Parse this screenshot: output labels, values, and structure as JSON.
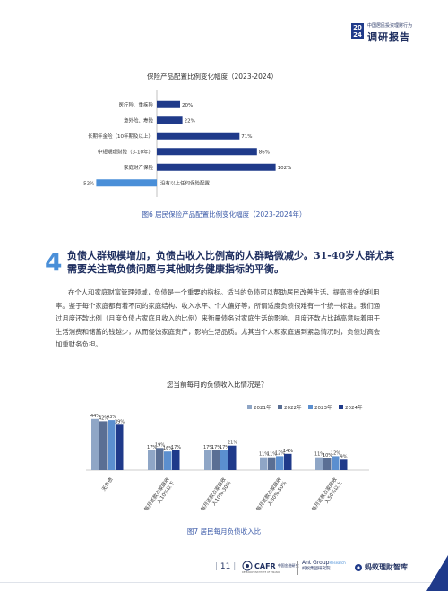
{
  "header": {
    "year_top": "20",
    "year_bottom": "24",
    "subtitle": "中国居民投资理财行为",
    "title": "调研报告"
  },
  "chart1": {
    "title": "保险产品配置比例变化幅度（2023-2024）",
    "caption": "图6 居民保险产品配置比例变化幅度（2023-2024年）",
    "bar_color": "#1f3a8a",
    "negative_color": "#4a8fd8",
    "chart_data": {
      "type": "bar",
      "orientation": "horizontal",
      "categories": [
        "医疗险、重疾险",
        "意外险、寿险",
        "长期年金险（10年期及以上）",
        "中短期理财险（3-10年）",
        "家庭财产保险",
        "没有以上任何保险配置"
      ],
      "values": [
        20,
        22,
        71,
        86,
        102,
        -52
      ],
      "value_labels": [
        "20%",
        "22%",
        "71%",
        "86%",
        "102%",
        "-52%"
      ],
      "unit": "%"
    }
  },
  "section": {
    "number": "4",
    "title_line1": "负债人群规模增加，负债占收入比例高的人群略微减少。31-40岁人群尤其",
    "title_line2": "需要关注高负债问题与其他财务健康指标的平衡。",
    "paragraph_lines": [
      "在个人和家庭财富管理领域，负债是一个重要的指标。适当的负债可以帮助居民改善生活、提高资金的利用",
      "率。鉴于每个家庭都有着不同的家庭结构、收入水平、个人偏好等，所谓适度负债很难有一个统一标准。我们通",
      "过月度还款比例（月度负债占家庭月收入的比例）来衡量债务对家庭生活的影响。月度还款占比越高意味着用于",
      "生活消费和储蓄的钱越少，从而侵蚀家庭资产，影响生活品质。尤其当个人和家庭遇到紧急情况时，负债过高会",
      "加重财务负担。"
    ]
  },
  "chart2": {
    "title": "您当前每月的负债收入比情况是？",
    "caption": "图7 居民每月负债收入比",
    "colors": [
      "#8fa6c6",
      "#5a6f94",
      "#5b8fcf",
      "#1f3a8a"
    ],
    "chart_data": {
      "type": "bar",
      "categories": [
        "无负债",
        "每月还款占家庭收入10%以下",
        "每月还款占家庭收入10%-30%",
        "每月还款占家庭收入30%-50%",
        "每月还款占家庭收入50%以上"
      ],
      "series": [
        {
          "name": "2021年",
          "values": [
            44,
            17,
            17,
            11,
            11
          ],
          "labels": [
            "44%",
            "17%",
            "17%",
            "11%",
            "11%"
          ]
        },
        {
          "name": "2022年",
          "values": [
            42,
            19,
            17,
            11,
            10
          ],
          "labels": [
            "42%",
            "19%",
            "17%",
            "11%",
            "10%"
          ]
        },
        {
          "name": "2023年",
          "values": [
            43,
            16,
            17,
            12,
            12
          ],
          "labels": [
            "43%",
            "16%",
            "17%",
            "12%",
            "12%"
          ]
        },
        {
          "name": "2024年",
          "values": [
            39,
            17,
            21,
            14,
            9
          ],
          "labels": [
            "39%",
            "17%",
            "21%",
            "14%",
            "9%"
          ]
        }
      ],
      "ylim": [
        0,
        50
      ],
      "unit": "%"
    }
  },
  "footer": {
    "page_number": "11",
    "logo1_main": "CAFR",
    "logo1_sub": "中国金融研究",
    "logo1_tiny": "RESEARCH INSTITUTE OF FINANCE",
    "logo2_main": "Ant Group",
    "logo2_super": "Research",
    "logo2_sub": "蚂蚁集团研究院",
    "logo3": "蚂蚁理财智库"
  }
}
